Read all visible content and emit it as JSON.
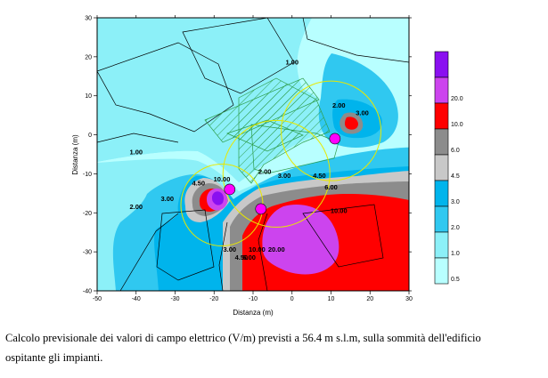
{
  "chart_data": {
    "type": "heatmap",
    "title": "",
    "xlabel": "Distanza (m)",
    "ylabel": "Distanza (m)",
    "xlim": [
      -50,
      30
    ],
    "ylim": [
      -40,
      30
    ],
    "x_ticks": [
      -50,
      -40,
      -30,
      -20,
      -10,
      0,
      10,
      20,
      30
    ],
    "y_ticks": [
      -40,
      -30,
      -20,
      -10,
      0,
      10,
      20,
      30
    ],
    "levels": [
      {
        "label": "0.5",
        "color": "#b8ffff"
      },
      {
        "label": "1.0",
        "color": "#8cf0f8"
      },
      {
        "label": "2.0",
        "color": "#30c8f0"
      },
      {
        "label": "3.0",
        "color": "#00b4ec"
      },
      {
        "label": "4.5",
        "color": "#c8c8c8"
      },
      {
        "label": "6.0",
        "color": "#8c8c8c"
      },
      {
        "label": "10.0",
        "color": "#ff0000"
      },
      {
        "label": "20.0",
        "color": "#cc44ee"
      },
      {
        "label": "",
        "color": "#8a10f0"
      }
    ],
    "contour_labels": [
      {
        "text": "1.00",
        "x": 0,
        "y": 18
      },
      {
        "text": "1.00",
        "x": -40,
        "y": -5
      },
      {
        "text": "2.00",
        "x": 12,
        "y": 7
      },
      {
        "text": "3.00",
        "x": 18,
        "y": 5
      },
      {
        "text": "2.00",
        "x": -40,
        "y": -19
      },
      {
        "text": "3.00",
        "x": -32,
        "y": -17
      },
      {
        "text": "4.50",
        "x": -24,
        "y": -13
      },
      {
        "text": "10.00",
        "x": -18,
        "y": -12
      },
      {
        "text": "4.50",
        "x": 7,
        "y": -11
      },
      {
        "text": "6.00",
        "x": 10,
        "y": -14
      },
      {
        "text": "10.00",
        "x": 12,
        "y": -20
      },
      {
        "text": "20.00",
        "x": -4,
        "y": -30
      },
      {
        "text": "10.00",
        "x": -9,
        "y": -30
      },
      {
        "text": "3.00",
        "x": -2,
        "y": -11
      },
      {
        "text": "2.00",
        "x": -7,
        "y": -10
      },
      {
        "text": "3.00",
        "x": -16,
        "y": -30
      },
      {
        "text": "4.50",
        "x": -13,
        "y": -32
      },
      {
        "text": "6.00",
        "x": -11,
        "y": -32
      }
    ],
    "sources": [
      {
        "x": 11,
        "y": -1
      },
      {
        "x": -16,
        "y": -14
      },
      {
        "x": -8,
        "y": -19
      }
    ]
  },
  "caption": {
    "line1": "Calcolo previsionale dei valori di campo elettrico (V/m) previsti a 56.4 m s.l.m, sulla sommità dell'edificio",
    "line2": "ospitante gli impianti."
  }
}
